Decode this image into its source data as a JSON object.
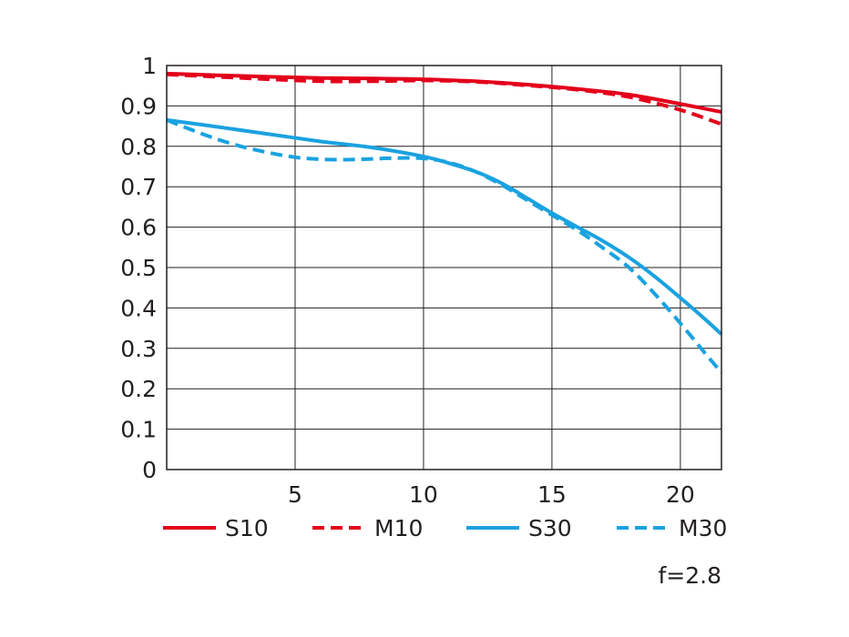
{
  "chart_data": {
    "type": "line",
    "xlim": [
      0,
      21.6
    ],
    "ylim": [
      0,
      1
    ],
    "x_ticks": [
      "5",
      "10",
      "15",
      "20"
    ],
    "y_ticks": [
      "0",
      "0.1",
      "0.2",
      "0.3",
      "0.4",
      "0.5",
      "0.6",
      "0.7",
      "0.8",
      "0.9",
      "1"
    ],
    "grid": true,
    "legend_position": "bottom",
    "annotation": "f=2.8",
    "series": [
      {
        "name": "S10",
        "color": "#e3001b",
        "dash": "solid",
        "x": [
          0,
          2,
          4,
          6,
          8,
          10,
          12,
          14,
          16,
          18,
          20,
          21.6
        ],
        "y": [
          0.98,
          0.976,
          0.972,
          0.969,
          0.968,
          0.966,
          0.961,
          0.953,
          0.942,
          0.928,
          0.905,
          0.885
        ]
      },
      {
        "name": "M10",
        "color": "#e3001b",
        "dash": "dashed",
        "x": [
          0,
          2,
          4,
          6,
          8,
          10,
          12,
          14,
          16,
          18,
          20,
          21.6
        ],
        "y": [
          0.978,
          0.972,
          0.966,
          0.961,
          0.961,
          0.963,
          0.96,
          0.951,
          0.94,
          0.922,
          0.89,
          0.855
        ]
      },
      {
        "name": "S30",
        "color": "#1aa2e0",
        "dash": "solid",
        "x": [
          0,
          2,
          4,
          6,
          8,
          10,
          11,
          12,
          13,
          14,
          15,
          16,
          17,
          18,
          19,
          20,
          21,
          21.6
        ],
        "y": [
          0.865,
          0.848,
          0.83,
          0.812,
          0.797,
          0.775,
          0.758,
          0.738,
          0.71,
          0.673,
          0.635,
          0.6,
          0.565,
          0.525,
          0.478,
          0.425,
          0.37,
          0.335
        ]
      },
      {
        "name": "M30",
        "color": "#1aa2e0",
        "dash": "dashed",
        "x": [
          0,
          1,
          2,
          3,
          4,
          5,
          6,
          7,
          8,
          9,
          10,
          11,
          12,
          13,
          14,
          15,
          16,
          17,
          18,
          19,
          20,
          21,
          21.6
        ],
        "y": [
          0.865,
          0.84,
          0.817,
          0.798,
          0.784,
          0.773,
          0.768,
          0.767,
          0.769,
          0.771,
          0.77,
          0.76,
          0.738,
          0.706,
          0.668,
          0.63,
          0.592,
          0.548,
          0.5,
          0.435,
          0.362,
          0.285,
          0.24
        ]
      }
    ]
  }
}
